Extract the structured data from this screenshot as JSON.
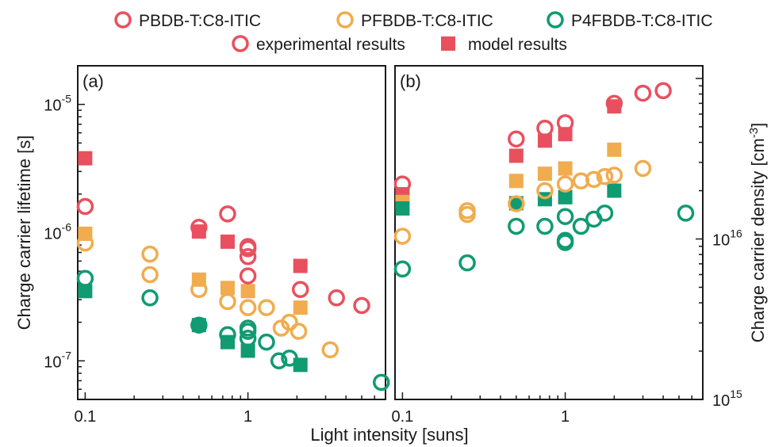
{
  "legend": {
    "series": [
      {
        "name": "PBDB-T:C8-ITIC",
        "color": "#e9505f"
      },
      {
        "name": "PFBDB-T:C8-ITIC",
        "color": "#f0ac4e"
      },
      {
        "name": "P4FBDB-T:C8-ITIC",
        "color": "#109b72"
      }
    ],
    "experimental_label": "experimental results",
    "model_label": "model results"
  },
  "xlabel": "Light intensity  [suns]",
  "chart_data": [
    {
      "type": "scatter",
      "panel_label": "(a)",
      "ylabel": "Charge carrier lifetime [s]",
      "xscale": "log",
      "yscale": "log",
      "xlim": [
        0.09,
        7
      ],
      "ylim": [
        5e-08,
        2e-05
      ],
      "x_ticks": [
        "0.1",
        "1"
      ],
      "y_ticks": [
        {
          "base": "10",
          "exp": "-7",
          "value": 1e-07
        },
        {
          "base": "10",
          "exp": "-6",
          "value": 1e-06
        },
        {
          "base": "10",
          "exp": "-5",
          "value": 1e-05
        }
      ],
      "series": [
        {
          "name": "PBDB-T:C8-ITIC",
          "color": "#e9505f",
          "experimental": [
            [
              0.1,
              1.6e-06
            ],
            [
              0.5,
              1.1e-06
            ],
            [
              0.75,
              1.4e-06
            ],
            [
              1,
              7.8e-07
            ],
            [
              1,
              7.5e-07
            ],
            [
              1,
              6.5e-07
            ],
            [
              1,
              4.6e-07
            ],
            [
              2.1,
              3.6e-07
            ],
            [
              3.5,
              3.1e-07
            ],
            [
              5,
              2.7e-07
            ]
          ],
          "model": [
            [
              0.1,
              3.8e-06
            ],
            [
              0.5,
              1.02e-06
            ],
            [
              0.75,
              8.5e-07
            ],
            [
              2.1,
              5.5e-07
            ]
          ]
        },
        {
          "name": "PFBDB-T:C8-ITIC",
          "color": "#f0ac4e",
          "experimental": [
            [
              0.1,
              8.3e-07
            ],
            [
              0.25,
              6.8e-07
            ],
            [
              0.25,
              4.7e-07
            ],
            [
              0.5,
              3.6e-07
            ],
            [
              0.75,
              2.9e-07
            ],
            [
              1,
              2.6e-07
            ],
            [
              1.3,
              2.6e-07
            ],
            [
              1.6,
              1.8e-07
            ],
            [
              1.8,
              2e-07
            ],
            [
              2.05,
              1.7e-07
            ],
            [
              3.2,
              1.22e-07
            ]
          ],
          "model": [
            [
              0.1,
              9.8e-07
            ],
            [
              0.5,
              4.3e-07
            ],
            [
              0.75,
              3.7e-07
            ],
            [
              1,
              3.5e-07
            ],
            [
              2.1,
              2.6e-07
            ]
          ]
        },
        {
          "name": "P4FBDB-T:C8-ITIC",
          "color": "#109b72",
          "experimental": [
            [
              0.1,
              4.4e-07
            ],
            [
              0.25,
              3.1e-07
            ],
            [
              0.5,
              1.9e-07
            ],
            [
              0.75,
              1.6e-07
            ],
            [
              1,
              1.8e-07
            ],
            [
              1,
              1.7e-07
            ],
            [
              1,
              1.5e-07
            ],
            [
              1.3,
              1.4e-07
            ],
            [
              1.55,
              1e-07
            ],
            [
              1.8,
              1.05e-07
            ],
            [
              6.6,
              6.8e-08
            ]
          ],
          "model": [
            [
              0.1,
              3.5e-07
            ],
            [
              0.5,
              1.9e-07
            ],
            [
              0.75,
              1.4e-07
            ],
            [
              1,
              1.2e-07
            ],
            [
              2.1,
              9.3e-08
            ]
          ]
        }
      ]
    },
    {
      "type": "scatter",
      "panel_label": "(b)",
      "ylabel": "Charge carrier density [cm-3]",
      "xscale": "log",
      "yscale": "log",
      "xlim": [
        0.09,
        7
      ],
      "ylim": [
        1000000000000000.0,
        1.2e+17
      ],
      "x_ticks": [
        "0.1",
        "1"
      ],
      "y_ticks": [
        {
          "base": "10",
          "exp": "15",
          "value": 1000000000000000.0
        },
        {
          "base": "10",
          "exp": "16",
          "value": 1e+16
        }
      ],
      "series": [
        {
          "name": "PBDB-T:C8-ITIC",
          "color": "#e9505f",
          "experimental": [
            [
              0.1,
              2.2e+16
            ],
            [
              0.5,
              4.2e+16
            ],
            [
              0.75,
              4.9e+16
            ],
            [
              1,
              5.3e+16
            ],
            [
              2,
              7e+16
            ],
            [
              3,
              8.1e+16
            ],
            [
              4,
              8.4e+16
            ]
          ],
          "model": [
            [
              0.1,
              1.9e+16
            ],
            [
              0.5,
              3.3e+16
            ],
            [
              0.75,
              4.1e+16
            ],
            [
              1,
              4.5e+16
            ],
            [
              2,
              6.7e+16
            ]
          ]
        },
        {
          "name": "PFBDB-T:C8-ITIC",
          "color": "#f0ac4e",
          "experimental": [
            [
              0.1,
              1.04e+16
            ],
            [
              0.25,
              1.5e+16
            ],
            [
              0.25,
              1.42e+16
            ],
            [
              0.5,
              1.66e+16
            ],
            [
              0.75,
              2e+16
            ],
            [
              1,
              2.2e+16
            ],
            [
              1.25,
              2.3e+16
            ],
            [
              1.5,
              2.35e+16
            ],
            [
              1.75,
              2.45e+16
            ],
            [
              2,
              2.5e+16
            ],
            [
              3,
              2.75e+16
            ]
          ],
          "model": [
            [
              0.1,
              1.7e+16
            ],
            [
              0.5,
              2.3e+16
            ],
            [
              0.75,
              2.55e+16
            ],
            [
              1,
              2.75e+16
            ],
            [
              2,
              3.6e+16
            ]
          ]
        },
        {
          "name": "P4FBDB-T:C8-ITIC",
          "color": "#109b72",
          "experimental": [
            [
              0.1,
              6500000000000000.0
            ],
            [
              0.25,
              7100000000000000.0
            ],
            [
              0.5,
              1.2e+16
            ],
            [
              0.75,
              1.2e+16
            ],
            [
              1,
              1.38e+16
            ],
            [
              1,
              9800000000000000.0
            ],
            [
              1,
              9500000000000000.0
            ],
            [
              1.25,
              1.2e+16
            ],
            [
              1.5,
              1.33e+16
            ],
            [
              1.75,
              1.45e+16
            ],
            [
              5.5,
              1.45e+16
            ]
          ],
          "model": [
            [
              0.1,
              1.55e+16
            ],
            [
              0.5,
              1.67e+16
            ],
            [
              0.75,
              1.77e+16
            ],
            [
              1,
              1.82e+16
            ],
            [
              2,
              2e+16
            ]
          ]
        }
      ]
    }
  ]
}
